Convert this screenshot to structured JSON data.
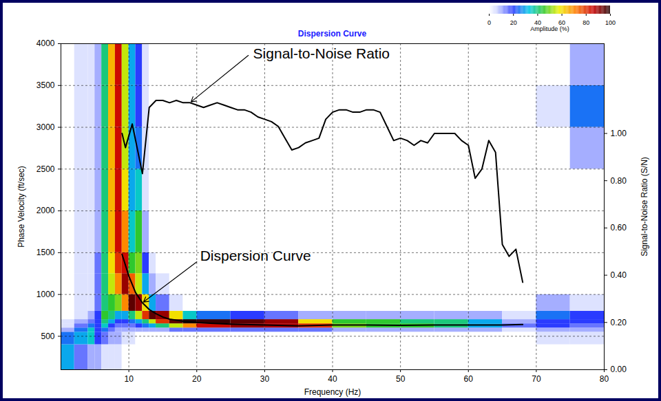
{
  "chart_data": {
    "type": "line",
    "title": "Dispersion Curve",
    "x_label": "Frequency (Hz)",
    "y_label": "Phase Velocity (ft/sec)",
    "y2_label": "Signal-to-Noise Ratio (S/N)",
    "xlim": [
      0,
      80
    ],
    "xticks": [
      10,
      20,
      30,
      40,
      50,
      60,
      70,
      80
    ],
    "ylim": [
      100,
      4000
    ],
    "yticks": [
      500,
      1000,
      1500,
      2000,
      2500,
      3000,
      3500,
      4000
    ],
    "y2lim": [
      0,
      1.38
    ],
    "y2ticks": [
      {
        "value": 0,
        "label": "0.00"
      },
      {
        "value": 0.2,
        "label": "0.20"
      },
      {
        "value": 0.4,
        "label": "0.40"
      },
      {
        "value": 0.6,
        "label": "0.60"
      },
      {
        "value": 0.8,
        "label": "0.80"
      },
      {
        "value": 1,
        "label": "1.00"
      }
    ],
    "grid": true,
    "series": [
      {
        "name": "Dispersion Curve",
        "color": "#000000",
        "x": [
          9,
          10,
          11,
          12,
          13,
          14,
          15,
          16,
          18,
          20,
          22,
          25,
          30,
          35,
          40,
          45,
          50,
          55,
          60,
          65,
          68
        ],
        "values": [
          1480,
          1220,
          1020,
          900,
          820,
          770,
          730,
          705,
          680,
          665,
          655,
          645,
          635,
          625,
          635,
          635,
          630,
          635,
          635,
          635,
          640
        ]
      },
      {
        "name": "Signal-to-Noise Ratio",
        "color": "#000000",
        "axis": "y2",
        "x": [
          9,
          9.5,
          10.5,
          12,
          13,
          14,
          15,
          16,
          17,
          18,
          19,
          20,
          21,
          22,
          23,
          24,
          25,
          26,
          27,
          28,
          29,
          30,
          31,
          32,
          33,
          34,
          35,
          36,
          37,
          38,
          39,
          40,
          41,
          42,
          43,
          44,
          45,
          46,
          47,
          48,
          49,
          50,
          51,
          52,
          53,
          54,
          55,
          56,
          57,
          58,
          59,
          60,
          61,
          62,
          63,
          64,
          65,
          66,
          67,
          68
        ],
        "values": [
          1,
          0.94,
          1.04,
          0.83,
          1.11,
          1.14,
          1.14,
          1.13,
          1.14,
          1.13,
          1.13,
          1.12,
          1.11,
          1.12,
          1.13,
          1.12,
          1.11,
          1.1,
          1.1,
          1.09,
          1.07,
          1.06,
          1.05,
          1.03,
          0.98,
          0.93,
          0.94,
          0.96,
          0.97,
          0.98,
          1.06,
          1.09,
          1.1,
          1.1,
          1.09,
          1.09,
          1.1,
          1.1,
          1.09,
          1.03,
          0.97,
          0.98,
          0.97,
          0.95,
          0.97,
          0.96,
          1,
          1,
          1,
          1,
          0.97,
          0.95,
          0.81,
          0.85,
          0.97,
          0.92,
          0.53,
          0.48,
          0.51,
          0.37
        ]
      }
    ],
    "heatmap": {
      "x_edges": [
        0,
        2,
        4,
        5,
        6,
        7,
        8,
        9,
        10,
        11,
        12,
        13,
        14,
        16,
        18,
        20,
        25,
        30,
        35,
        40,
        45,
        50,
        55,
        60,
        65,
        70,
        75,
        80
      ],
      "y_edges": [
        100,
        400,
        550,
        600,
        650,
        700,
        800,
        1000,
        1250,
        1500,
        2000,
        2500,
        3000,
        3500,
        4000
      ],
      "amplitude": [
        [
          30,
          15,
          10,
          10,
          5,
          5,
          5,
          0,
          0,
          0,
          0,
          0,
          0,
          0,
          0,
          0,
          0,
          0,
          0,
          0,
          0,
          0,
          0,
          0,
          0,
          0,
          0
        ],
        [
          25,
          30,
          35,
          20,
          15,
          10,
          10,
          5,
          5,
          0,
          0,
          0,
          0,
          0,
          0,
          0,
          0,
          0,
          0,
          0,
          0,
          0,
          0,
          0,
          0,
          5,
          5
        ],
        [
          10,
          25,
          35,
          20,
          25,
          15,
          10,
          10,
          10,
          10,
          10,
          10,
          10,
          15,
          15,
          15,
          15,
          15,
          15,
          10,
          10,
          10,
          10,
          10,
          5,
          10,
          10
        ],
        [
          5,
          15,
          25,
          20,
          35,
          20,
          15,
          15,
          15,
          20,
          25,
          30,
          40,
          55,
          70,
          85,
          90,
          88,
          80,
          50,
          45,
          45,
          40,
          30,
          15,
          20,
          15
        ],
        [
          5,
          10,
          15,
          20,
          40,
          30,
          20,
          20,
          25,
          30,
          40,
          55,
          80,
          95,
          100,
          98,
          95,
          90,
          60,
          45,
          45,
          40,
          40,
          30,
          10,
          20,
          20
        ],
        [
          0,
          5,
          10,
          20,
          45,
          40,
          30,
          30,
          40,
          55,
          80,
          95,
          90,
          60,
          35,
          25,
          20,
          15,
          10,
          10,
          10,
          10,
          10,
          10,
          5,
          25,
          20
        ],
        [
          0,
          5,
          5,
          15,
          40,
          45,
          50,
          70,
          95,
          90,
          60,
          30,
          15,
          5,
          0,
          0,
          0,
          0,
          0,
          0,
          0,
          0,
          0,
          0,
          0,
          10,
          5
        ],
        [
          0,
          5,
          5,
          15,
          40,
          55,
          70,
          90,
          75,
          55,
          30,
          10,
          5,
          0,
          0,
          0,
          0,
          0,
          0,
          0,
          0,
          0,
          0,
          0,
          0,
          0,
          0
        ],
        [
          0,
          5,
          5,
          15,
          40,
          60,
          80,
          85,
          45,
          50,
          20,
          5,
          0,
          0,
          0,
          0,
          0,
          0,
          0,
          0,
          0,
          0,
          0,
          0,
          0,
          0,
          0
        ],
        [
          0,
          5,
          5,
          10,
          40,
          65,
          85,
          70,
          35,
          45,
          10,
          0,
          0,
          0,
          0,
          0,
          0,
          0,
          0,
          0,
          0,
          0,
          0,
          0,
          0,
          0,
          0
        ],
        [
          0,
          5,
          5,
          10,
          40,
          65,
          85,
          60,
          30,
          35,
          5,
          0,
          0,
          0,
          0,
          0,
          0,
          0,
          0,
          0,
          0,
          0,
          0,
          0,
          0,
          0,
          0
        ],
        [
          0,
          5,
          5,
          10,
          40,
          65,
          85,
          55,
          30,
          25,
          5,
          0,
          0,
          0,
          0,
          0,
          0,
          0,
          0,
          0,
          0,
          0,
          0,
          0,
          0,
          0,
          10
        ],
        [
          0,
          5,
          5,
          10,
          40,
          65,
          85,
          55,
          30,
          20,
          5,
          0,
          0,
          0,
          0,
          0,
          0,
          0,
          0,
          0,
          0,
          0,
          0,
          0,
          0,
          5,
          25
        ],
        [
          0,
          5,
          5,
          10,
          40,
          65,
          85,
          55,
          30,
          20,
          5,
          0,
          0,
          0,
          0,
          0,
          0,
          0,
          0,
          0,
          0,
          0,
          0,
          0,
          0,
          0,
          10
        ]
      ],
      "colorbar": {
        "label": "Amplitude (%)",
        "range": [
          0,
          100
        ],
        "ticks": [
          0,
          20,
          40,
          60,
          80,
          100
        ]
      }
    }
  }
}
